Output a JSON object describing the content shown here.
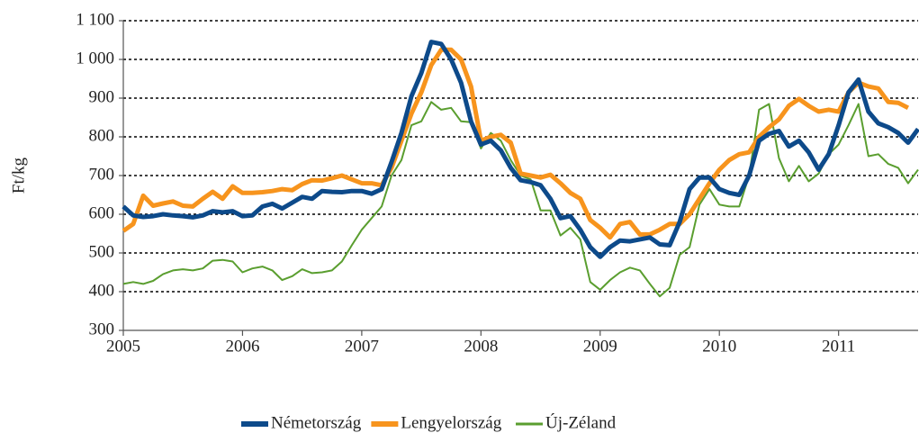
{
  "chart_data": {
    "type": "line",
    "y_label": "Ft/kg",
    "x": [
      2005,
      2005.083,
      2005.167,
      2005.25,
      2005.333,
      2005.417,
      2005.5,
      2005.583,
      2005.667,
      2005.75,
      2005.833,
      2005.917,
      2006,
      2006.083,
      2006.167,
      2006.25,
      2006.333,
      2006.417,
      2006.5,
      2006.583,
      2006.667,
      2006.75,
      2006.833,
      2006.917,
      2007,
      2007.083,
      2007.167,
      2007.25,
      2007.333,
      2007.417,
      2007.5,
      2007.583,
      2007.667,
      2007.75,
      2007.833,
      2007.917,
      2008,
      2008.083,
      2008.167,
      2008.25,
      2008.333,
      2008.417,
      2008.5,
      2008.583,
      2008.667,
      2008.75,
      2008.833,
      2008.917,
      2009,
      2009.083,
      2009.167,
      2009.25,
      2009.333,
      2009.417,
      2009.5,
      2009.583,
      2009.667,
      2009.75,
      2009.833,
      2009.917,
      2010,
      2010.083,
      2010.167,
      2010.25,
      2010.333,
      2010.417,
      2010.5,
      2010.583,
      2010.667,
      2010.75,
      2010.833,
      2010.917,
      2011,
      2011.083,
      2011.167,
      2011.25,
      2011.333,
      2011.417,
      2011.5,
      2011.583,
      2011.667
    ],
    "series": [
      {
        "name": "Németország",
        "color": "#0d4a8a",
        "width": 5,
        "values": [
          620,
          597,
          593,
          595,
          600,
          597,
          595,
          592,
          597,
          608,
          605,
          608,
          595,
          597,
          620,
          627,
          615,
          630,
          645,
          640,
          660,
          658,
          657,
          660,
          660,
          653,
          665,
          735,
          810,
          905,
          965,
          1045,
          1040,
          1000,
          940,
          840,
          780,
          790,
          765,
          720,
          688,
          683,
          675,
          640,
          590,
          595,
          560,
          515,
          490,
          515,
          532,
          530,
          535,
          540,
          522,
          520,
          580,
          665,
          695,
          695,
          665,
          655,
          650,
          700,
          790,
          808,
          815,
          775,
          790,
          760,
          715,
          755,
          830,
          915,
          948,
          865,
          835,
          825,
          810,
          785,
          820
        ]
      },
      {
        "name": "Lengyelország",
        "color": "#f7941d",
        "width": 5,
        "values": [
          557,
          575,
          648,
          622,
          628,
          633,
          622,
          620,
          640,
          658,
          640,
          672,
          655,
          655,
          657,
          660,
          665,
          662,
          678,
          688,
          687,
          693,
          700,
          690,
          680,
          680,
          675,
          720,
          790,
          860,
          915,
          985,
          1025,
          1025,
          1000,
          930,
          790,
          800,
          805,
          785,
          705,
          700,
          695,
          702,
          680,
          655,
          640,
          585,
          565,
          540,
          575,
          580,
          548,
          548,
          560,
          575,
          575,
          600,
          640,
          680,
          715,
          740,
          755,
          760,
          800,
          825,
          845,
          880,
          898,
          880,
          865,
          870,
          865,
          915,
          940,
          930,
          925,
          890,
          888,
          875,
          null
        ]
      },
      {
        "name": "Új-Zéland",
        "color": "#5a9e2f",
        "width": 2,
        "values": [
          420,
          425,
          420,
          428,
          445,
          455,
          458,
          455,
          460,
          480,
          482,
          478,
          450,
          460,
          465,
          455,
          430,
          440,
          458,
          448,
          450,
          455,
          478,
          520,
          560,
          590,
          620,
          700,
          740,
          830,
          840,
          890,
          870,
          875,
          840,
          838,
          770,
          810,
          790,
          740,
          700,
          690,
          610,
          610,
          545,
          565,
          535,
          425,
          405,
          430,
          450,
          462,
          455,
          420,
          388,
          410,
          495,
          515,
          625,
          665,
          625,
          620,
          620,
          700,
          870,
          885,
          745,
          685,
          725,
          685,
          705,
          755,
          780,
          830,
          885,
          750,
          755,
          730,
          720,
          680,
          715
        ]
      }
    ],
    "xlim": [
      2005,
      2011.667
    ],
    "xticks": [
      2005,
      2006,
      2007,
      2008,
      2009,
      2010,
      2011
    ],
    "ylim": [
      300,
      1100
    ],
    "yticks": [
      300,
      400,
      500,
      600,
      700,
      800,
      900,
      {
        "value": 1000,
        "label": "1 000"
      },
      {
        "value": 1100,
        "label": "1 100"
      }
    ],
    "grid": true
  }
}
